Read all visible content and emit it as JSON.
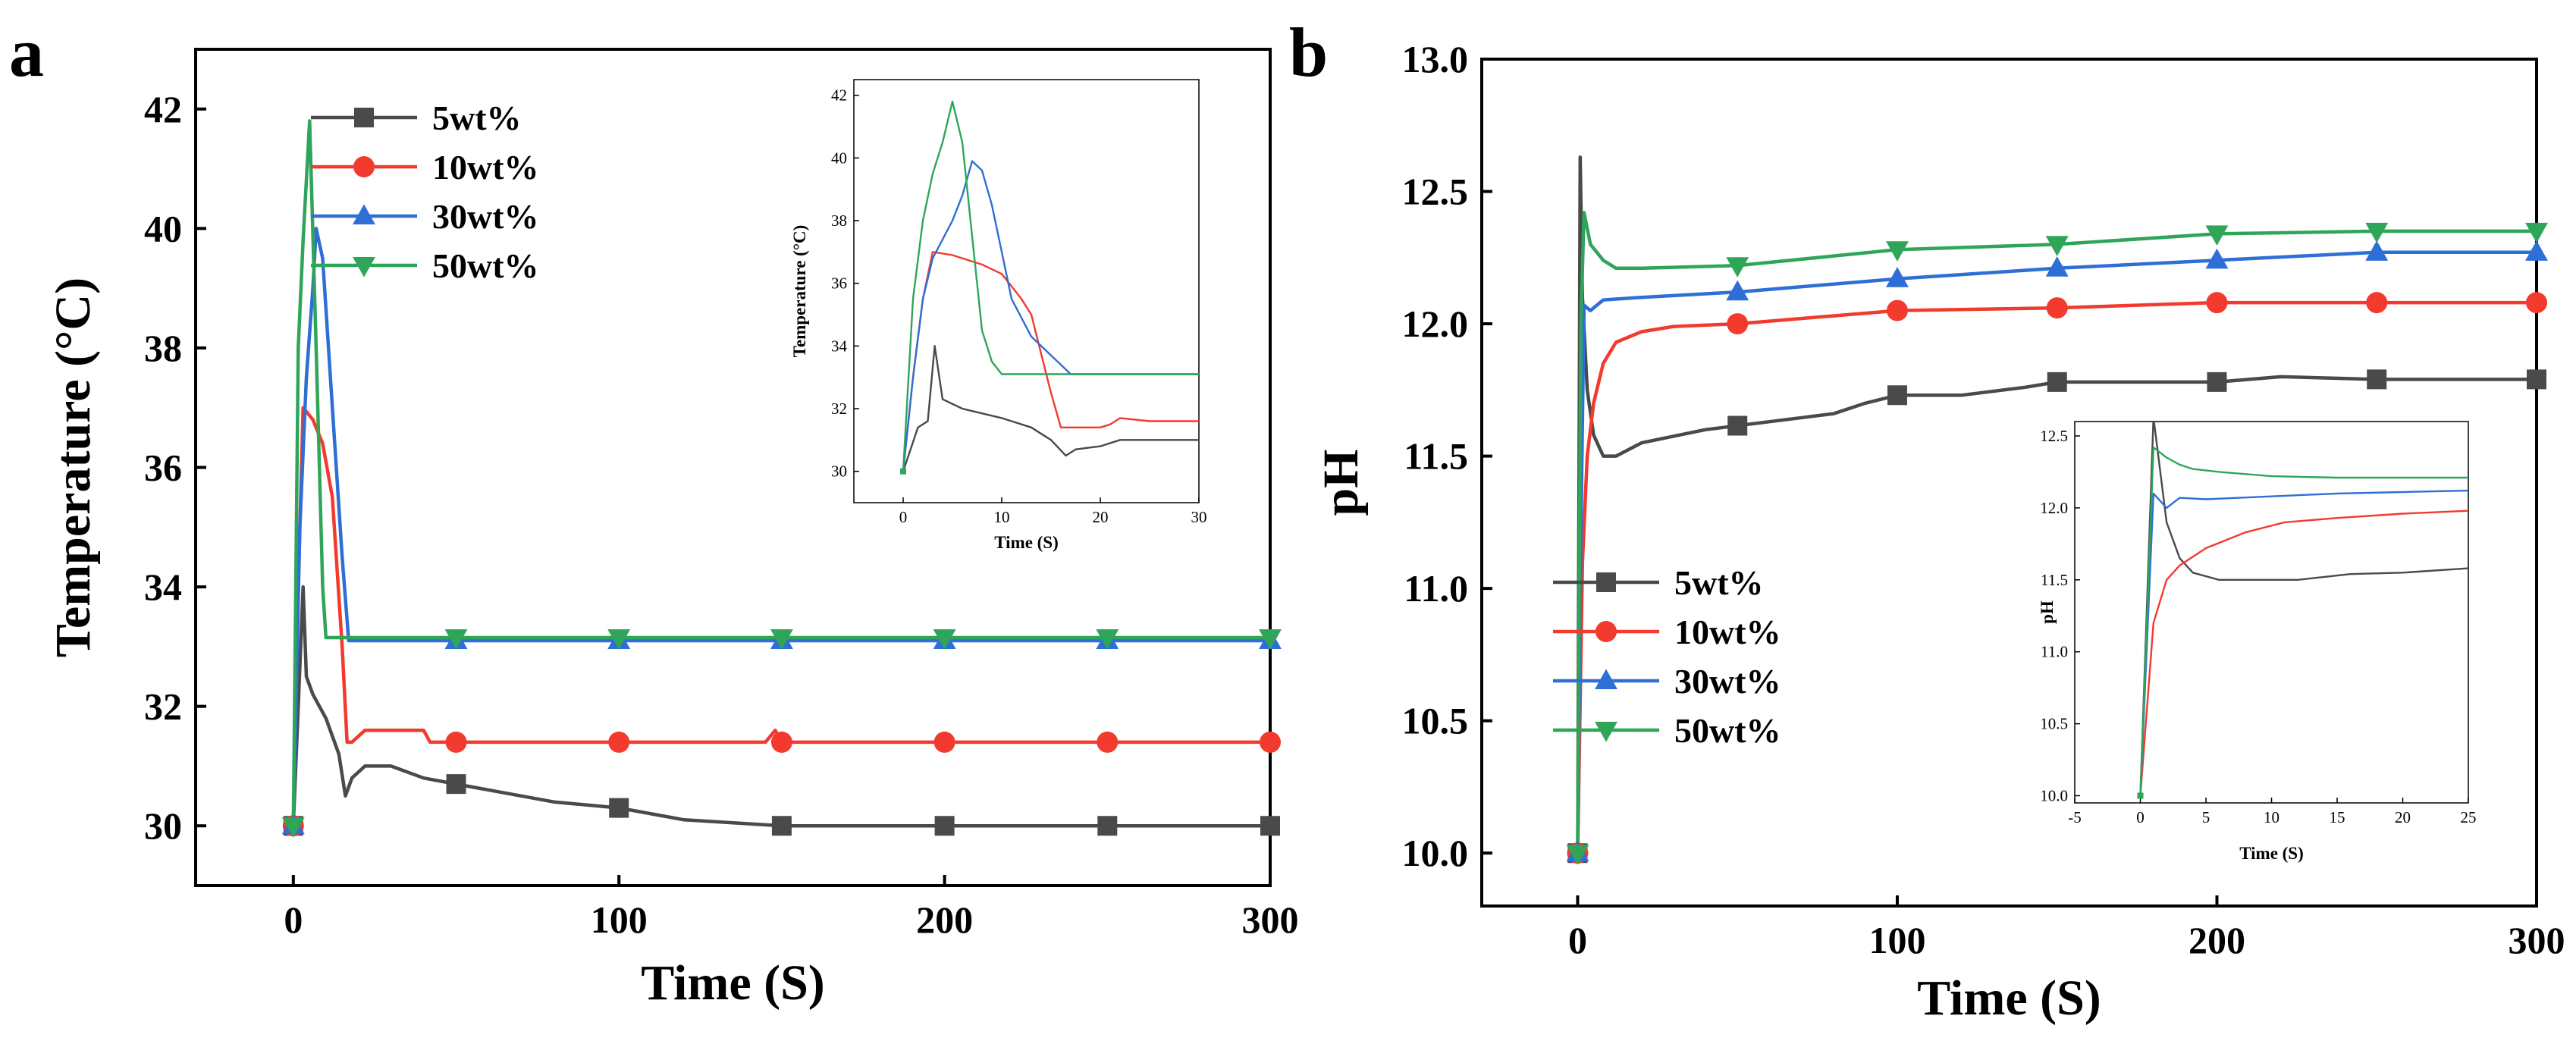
{
  "panels": {
    "a": {
      "label": "a"
    },
    "b": {
      "label": "b"
    }
  },
  "colors": {
    "5wt%": "#4a4a4a",
    "10wt%": "#f23a2e",
    "30wt%": "#2e6fd6",
    "50wt%": "#2fa55a"
  },
  "chart_data": [
    {
      "id": "a-main",
      "type": "line",
      "xlabel": "Time (S)",
      "ylabel": "Temperature (°C)",
      "xlim": [
        -30,
        300
      ],
      "ylim": [
        29,
        43
      ],
      "xticks": [
        0,
        100,
        200,
        300
      ],
      "yticks": [
        30,
        32,
        34,
        36,
        38,
        40,
        42
      ],
      "legend": "top-left",
      "series": [
        {
          "name": "5wt%",
          "marker": "square",
          "x": [
            0,
            1.5,
            3,
            4,
            6,
            10,
            14,
            16,
            18,
            22,
            30,
            40,
            50,
            80,
            100,
            120,
            150,
            200,
            250,
            300
          ],
          "y": [
            30,
            32,
            34,
            32.5,
            32.2,
            31.8,
            31.2,
            30.5,
            30.8,
            31,
            31,
            30.8,
            30.7,
            30.4,
            30.3,
            30.1,
            30,
            30,
            30,
            30
          ],
          "markers_x": [
            0,
            50,
            100,
            150,
            200,
            250,
            300
          ]
        },
        {
          "name": "10wt%",
          "marker": "circle",
          "x": [
            0,
            1.5,
            3,
            6,
            9,
            12,
            15,
            16.5,
            18,
            22,
            40,
            42,
            50,
            145,
            148,
            150,
            200,
            250,
            300
          ],
          "y": [
            30,
            34,
            37,
            36.8,
            36.4,
            35.5,
            33,
            31.4,
            31.4,
            31.6,
            31.6,
            31.4,
            31.4,
            31.4,
            31.6,
            31.4,
            31.4,
            31.4,
            31.4
          ],
          "markers_x": [
            0,
            50,
            100,
            150,
            200,
            250,
            300
          ]
        },
        {
          "name": "30wt%",
          "marker": "triangle-up",
          "x": [
            0,
            2,
            4,
            6,
            7,
            9,
            12,
            15,
            17,
            50,
            100,
            150,
            200,
            250,
            300
          ],
          "y": [
            30,
            35,
            37.5,
            39,
            40,
            39.5,
            37,
            34.5,
            33.1,
            33.1,
            33.1,
            33.1,
            33.1,
            33.1,
            33.1
          ],
          "markers_x": [
            0,
            50,
            100,
            150,
            200,
            250,
            300
          ]
        },
        {
          "name": "50wt%",
          "marker": "triangle-down",
          "x": [
            0,
            1.5,
            3,
            5,
            7,
            9,
            10,
            50,
            100,
            150,
            200,
            250,
            300
          ],
          "y": [
            30,
            38,
            39.8,
            41.8,
            38,
            34,
            33.15,
            33.15,
            33.15,
            33.15,
            33.15,
            33.15,
            33.15
          ],
          "markers_x": [
            0,
            50,
            100,
            150,
            200,
            250,
            300
          ]
        }
      ]
    },
    {
      "id": "a-inset",
      "type": "line",
      "xlabel": "Time (S)",
      "ylabel": "Temperature (°C)",
      "xlim": [
        -5,
        30
      ],
      "ylim": [
        29,
        42.5
      ],
      "xticks": [
        0,
        10,
        20,
        30
      ],
      "yticks": [
        30,
        32,
        34,
        36,
        38,
        40,
        42
      ],
      "series": [
        {
          "name": "5wt%",
          "x": [
            0,
            1.5,
            2.5,
            3.2,
            4,
            6,
            10,
            13,
            15,
            16.5,
            17.5,
            20,
            22,
            25,
            30
          ],
          "y": [
            30,
            31.4,
            31.6,
            34,
            32.3,
            32,
            31.7,
            31.4,
            31,
            30.5,
            30.7,
            30.8,
            31,
            31,
            31
          ]
        },
        {
          "name": "10wt%",
          "x": [
            0,
            1,
            2,
            3,
            5,
            8,
            10,
            12,
            13,
            15,
            16,
            20,
            21,
            22,
            25,
            30
          ],
          "y": [
            30,
            33,
            35.5,
            37,
            36.9,
            36.6,
            36.3,
            35.5,
            35,
            32.5,
            31.4,
            31.4,
            31.5,
            31.7,
            31.6,
            31.6
          ]
        },
        {
          "name": "30wt%",
          "x": [
            0,
            1,
            2,
            3,
            5,
            6,
            7,
            8,
            9,
            10,
            11,
            13,
            15,
            17,
            20,
            25,
            30
          ],
          "y": [
            30,
            33,
            35.5,
            36.8,
            38,
            38.8,
            39.9,
            39.6,
            38.5,
            37,
            35.5,
            34.3,
            33.7,
            33.1,
            33.1,
            33.1,
            33.1
          ]
        },
        {
          "name": "50wt%",
          "x": [
            0,
            1,
            2,
            3,
            4,
            5,
            6,
            7,
            8,
            9,
            10,
            15,
            20,
            25,
            30
          ],
          "y": [
            30,
            35.5,
            38,
            39.5,
            40.5,
            41.8,
            40.5,
            37.5,
            34.5,
            33.5,
            33.1,
            33.1,
            33.1,
            33.1,
            33.1
          ]
        }
      ]
    },
    {
      "id": "b-main",
      "type": "line",
      "xlabel": "Time (S)",
      "ylabel": "pH",
      "xlim": [
        -30,
        300
      ],
      "ylim": [
        9.8,
        13.0
      ],
      "xticks": [
        0,
        100,
        200,
        300
      ],
      "yticks": [
        "10.0",
        "10.5",
        "11.0",
        "11.5",
        "12.0",
        "12.5",
        "13.0"
      ],
      "legend": "bottom-left",
      "series": [
        {
          "name": "5wt%",
          "marker": "square",
          "x": [
            0,
            0.8,
            1.5,
            3,
            5,
            8,
            12,
            20,
            40,
            60,
            80,
            90,
            100,
            120,
            140,
            150,
            200,
            220,
            250,
            300
          ],
          "y": [
            10.0,
            12.63,
            12.1,
            11.75,
            11.58,
            11.5,
            11.5,
            11.55,
            11.6,
            11.63,
            11.66,
            11.7,
            11.73,
            11.73,
            11.76,
            11.78,
            11.78,
            11.8,
            11.79,
            11.79
          ],
          "markers_x": [
            0,
            50,
            100,
            150,
            200,
            250,
            300
          ]
        },
        {
          "name": "10wt%",
          "marker": "circle",
          "x": [
            0,
            1.5,
            3,
            5,
            8,
            12,
            20,
            30,
            50,
            80,
            100,
            150,
            200,
            250,
            300
          ],
          "y": [
            10.0,
            11.1,
            11.5,
            11.7,
            11.85,
            11.93,
            11.97,
            11.99,
            12.0,
            12.03,
            12.05,
            12.06,
            12.08,
            12.08,
            12.08
          ],
          "markers_x": [
            0,
            50,
            100,
            150,
            200,
            250,
            300
          ]
        },
        {
          "name": "30wt%",
          "marker": "triangle-up",
          "x": [
            0,
            1,
            2,
            4,
            8,
            20,
            50,
            100,
            150,
            200,
            250,
            300
          ],
          "y": [
            10.0,
            11.2,
            12.07,
            12.05,
            12.09,
            12.1,
            12.12,
            12.17,
            12.21,
            12.24,
            12.27,
            12.27
          ],
          "markers_x": [
            0,
            50,
            100,
            150,
            200,
            250,
            300
          ]
        },
        {
          "name": "50wt%",
          "marker": "triangle-down",
          "x": [
            0,
            1,
            2,
            4,
            8,
            12,
            20,
            50,
            100,
            150,
            200,
            250,
            300
          ],
          "y": [
            10.0,
            12.0,
            12.42,
            12.3,
            12.24,
            12.21,
            12.21,
            12.22,
            12.28,
            12.3,
            12.34,
            12.35,
            12.35
          ],
          "markers_x": [
            0,
            50,
            100,
            150,
            200,
            250,
            300
          ]
        }
      ]
    },
    {
      "id": "b-inset",
      "type": "line",
      "xlabel": "Time (S)",
      "ylabel": "pH",
      "xlim": [
        -5,
        25
      ],
      "ylim": [
        9.95,
        12.6
      ],
      "xticks": [
        -5,
        0,
        5,
        10,
        15,
        20,
        25
      ],
      "yticks": [
        "10.0",
        "10.5",
        "11.0",
        "11.5",
        "12.0",
        "12.5"
      ],
      "series": [
        {
          "name": "5wt%",
          "x": [
            0,
            1,
            2,
            3,
            4,
            6,
            8,
            12,
            16,
            20,
            25
          ],
          "y": [
            10.0,
            12.63,
            11.9,
            11.65,
            11.55,
            11.5,
            11.5,
            11.5,
            11.54,
            11.55,
            11.58
          ]
        },
        {
          "name": "10wt%",
          "x": [
            0,
            1,
            2,
            3,
            5,
            8,
            11,
            15,
            20,
            25
          ],
          "y": [
            10.0,
            11.2,
            11.5,
            11.6,
            11.72,
            11.83,
            11.9,
            11.93,
            11.96,
            11.98
          ]
        },
        {
          "name": "30wt%",
          "x": [
            0,
            1,
            2,
            3,
            5,
            10,
            15,
            20,
            25
          ],
          "y": [
            10.0,
            12.1,
            12.0,
            12.07,
            12.06,
            12.08,
            12.1,
            12.11,
            12.12
          ]
        },
        {
          "name": "50wt%",
          "x": [
            0,
            1,
            2,
            3,
            4,
            6,
            10,
            15,
            20,
            25
          ],
          "y": [
            10.0,
            12.42,
            12.35,
            12.3,
            12.27,
            12.25,
            12.22,
            12.21,
            12.21,
            12.21
          ]
        }
      ]
    }
  ]
}
